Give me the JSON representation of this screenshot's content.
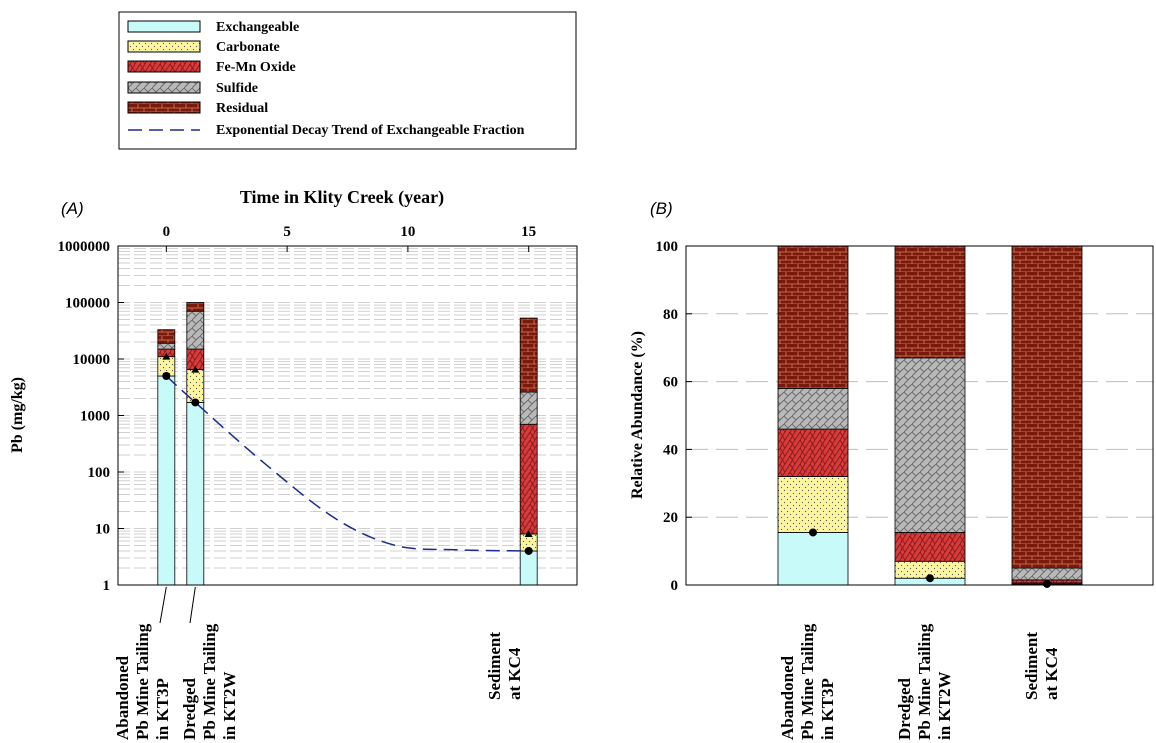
{
  "legend": {
    "items": [
      {
        "label": "Exchangeable",
        "key": "exchangeable"
      },
      {
        "label": "Carbonate",
        "key": "carbonate"
      },
      {
        "label": "Fe-Mn Oxide",
        "key": "femn"
      },
      {
        "label": "Sulfide",
        "key": "sulfide"
      },
      {
        "label": "Residual",
        "key": "residual"
      }
    ],
    "trend_label": "Exponential Decay Trend of Exchangeable Fraction"
  },
  "colors": {
    "exchangeable": "#c8fafa",
    "carbonate": "#fbf5a0",
    "femn": "#d93b3b",
    "sulfide": "#b9b9b9",
    "residual": "#7b1a0c",
    "trend": "#1f2a8c"
  },
  "chart_data": [
    {
      "panel_label": "(A)",
      "type": "bar",
      "stacked": true,
      "y_scale": "log",
      "ylabel": "Pb (mg/kg)",
      "ylim": [
        1,
        1000000
      ],
      "y_ticks": [
        "1",
        "10",
        "100",
        "1000",
        "10000",
        "100000",
        "1000000"
      ],
      "x_top_label": "Time in Klity Creek (year)",
      "x_top_ticks": [
        "0",
        "5",
        "10",
        "15"
      ],
      "xlim": [
        -2,
        17
      ],
      "grid": true,
      "bars": [
        {
          "x": 0,
          "label_lines": [
            "Abandoned",
            "Pb Mine Tailing",
            "in KT3P"
          ],
          "cumulative": {
            "exchangeable": 5000,
            "carbonate": 11000,
            "femn": 15000,
            "sulfide": 19000,
            "residual": 33000
          }
        },
        {
          "x": 1.2,
          "label_lines": [
            "Dredged",
            "Pb Mine Tailing",
            "in KT2W"
          ],
          "cumulative": {
            "exchangeable": 1700,
            "carbonate": 6500,
            "femn": 15000,
            "sulfide": 70000,
            "residual": 100000
          }
        },
        {
          "x": 15,
          "label_lines": [
            "Sediment",
            "at KC4"
          ],
          "cumulative": {
            "exchangeable": 4,
            "carbonate": 8,
            "femn": 700,
            "sulfide": 2600,
            "residual": 53000
          }
        }
      ],
      "trend_points": [
        [
          0,
          5000
        ],
        [
          1.2,
          1700
        ],
        [
          4,
          150
        ],
        [
          7,
          15
        ],
        [
          9.5,
          5
        ],
        [
          12,
          4.2
        ],
        [
          15,
          4
        ]
      ]
    },
    {
      "panel_label": "(B)",
      "type": "bar",
      "stacked": true,
      "ylabel": "Relative Abundance (%)",
      "ylim": [
        0,
        100
      ],
      "y_ticks": [
        "0",
        "20",
        "40",
        "60",
        "80",
        "100"
      ],
      "grid": true,
      "bars": [
        {
          "label_lines": [
            "Abandoned",
            "Pb Mine Tailing",
            "in KT3P"
          ],
          "cumulative": {
            "exchangeable": 15.5,
            "carbonate": 32,
            "femn": 46,
            "sulfide": 58,
            "residual": 100
          }
        },
        {
          "label_lines": [
            "Dredged",
            "Pb Mine Tailing",
            "in KT2W"
          ],
          "cumulative": {
            "exchangeable": 2,
            "carbonate": 7,
            "femn": 15.5,
            "sulfide": 67,
            "residual": 100
          }
        },
        {
          "label_lines": [
            "Sediment",
            "at KC4"
          ],
          "cumulative": {
            "exchangeable": 0.3,
            "carbonate": 0.6,
            "femn": 1.5,
            "sulfide": 5,
            "residual": 100
          }
        }
      ]
    }
  ]
}
